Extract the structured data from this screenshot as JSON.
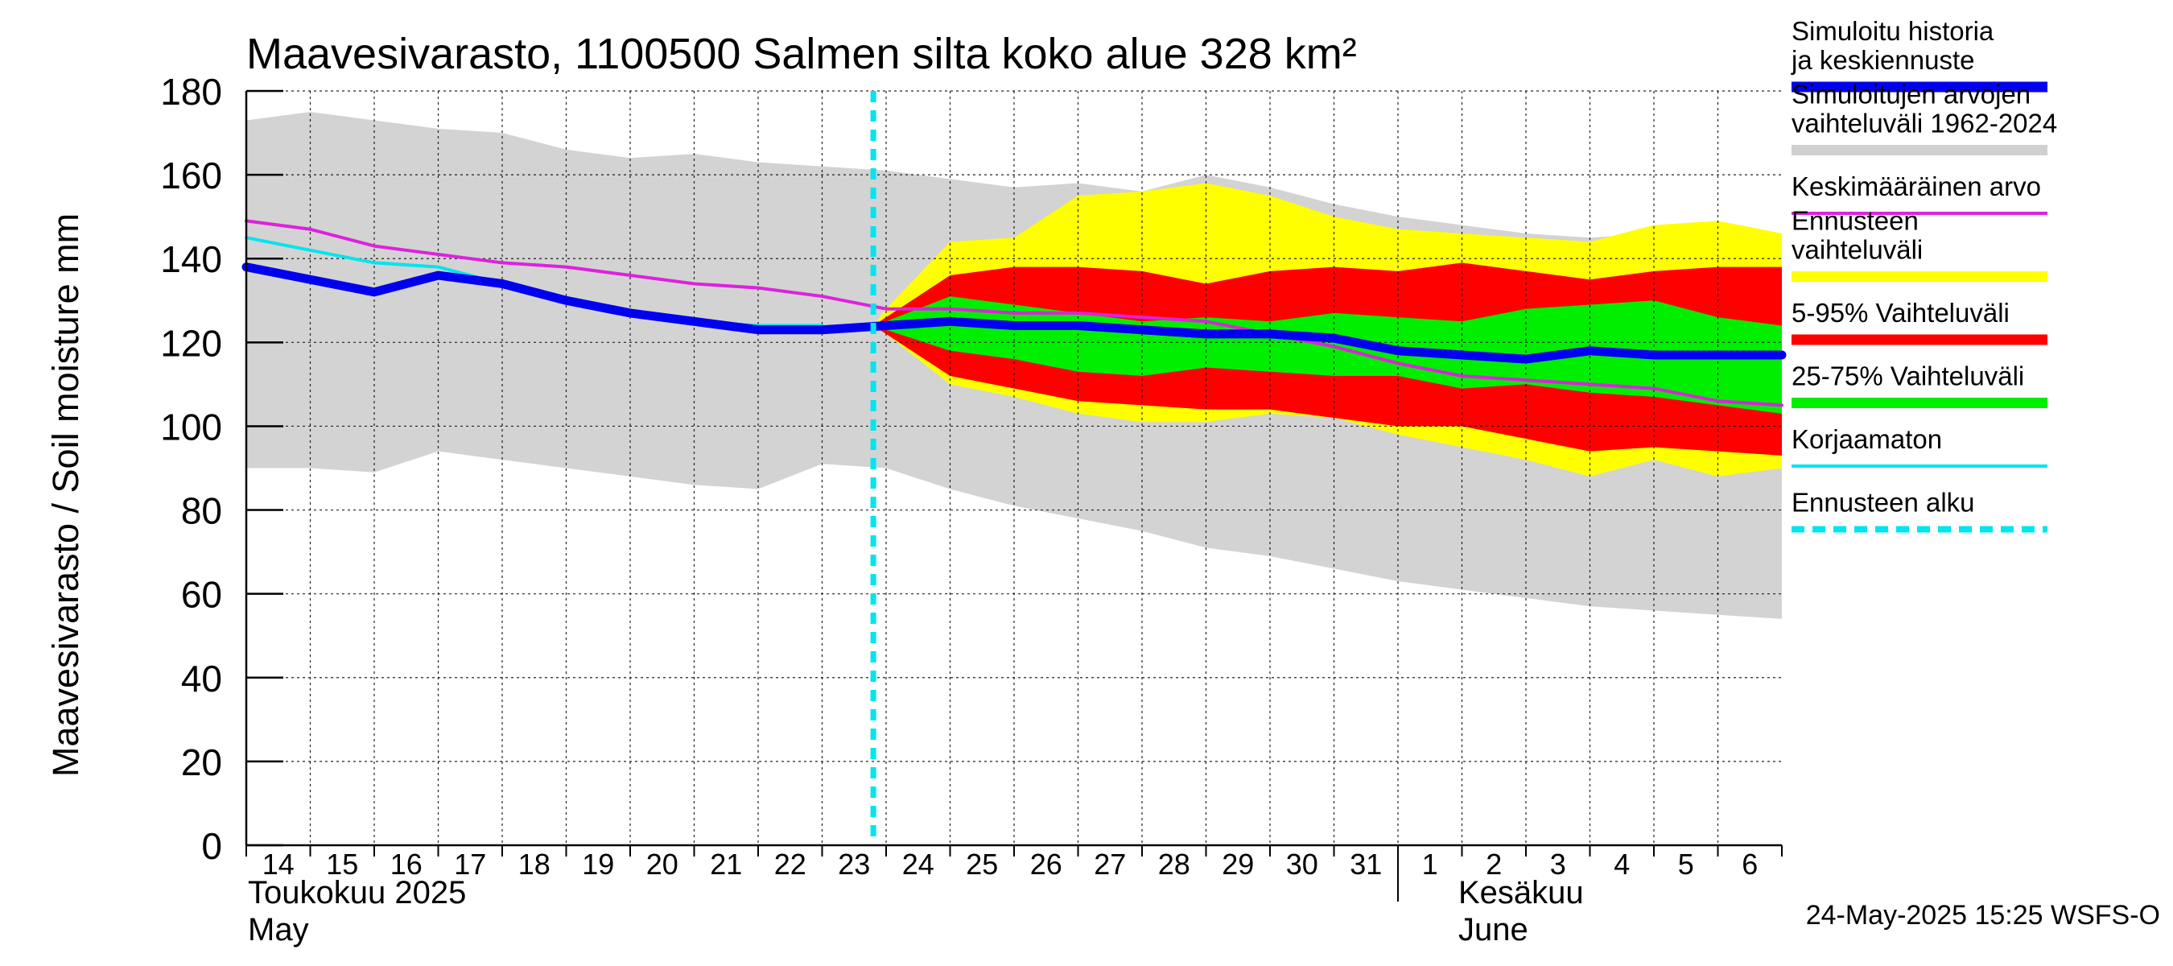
{
  "chart_data": {
    "type": "area",
    "title": "Maavesivarasto, 1100500 Salmen silta koko alue 328 km²",
    "ylabel": "Maavesivarasto / Soil moisture   mm",
    "ylim": [
      0,
      180
    ],
    "yticks": [
      0,
      20,
      40,
      60,
      80,
      100,
      120,
      140,
      160,
      180
    ],
    "grid": true,
    "legend_position": "right",
    "x_day_labels": [
      "14",
      "15",
      "16",
      "17",
      "18",
      "19",
      "20",
      "21",
      "22",
      "23",
      "24",
      "25",
      "26",
      "27",
      "28",
      "29",
      "30",
      "31",
      "1",
      "2",
      "3",
      "4",
      "5",
      "6"
    ],
    "month_labels": [
      {
        "fi": "Toukokuu  2025",
        "en": "May"
      },
      {
        "fi": "Kesäkuu",
        "en": "June"
      }
    ],
    "footer": "24-May-2025 15:25 WSFS-O",
    "forecast_start_day_index": 9.8,
    "series": {
      "sim_range": {
        "name": "Simuloitujen arvojen vaihteluväli 1962-2024",
        "x": [
          0,
          1,
          2,
          3,
          4,
          5,
          6,
          7,
          8,
          9,
          10,
          11,
          12,
          13,
          14,
          15,
          16,
          17,
          18,
          19,
          20,
          21,
          22,
          23,
          24
        ],
        "upper": [
          173,
          175,
          173,
          171,
          170,
          166,
          164,
          165,
          163,
          162,
          161,
          159,
          157,
          158,
          156,
          160,
          157,
          153,
          150,
          148,
          146,
          145,
          146,
          146,
          144
        ],
        "lower": [
          90,
          90,
          89,
          94,
          92,
          90,
          88,
          86,
          85,
          91,
          90,
          85,
          81,
          78,
          75,
          71,
          69,
          66,
          63,
          61,
          59,
          57,
          56,
          55,
          54
        ]
      },
      "forecast_range": {
        "name": "Ennusteen vaihteluväli",
        "x": [
          9.8,
          10,
          11,
          12,
          13,
          14,
          15,
          16,
          17,
          18,
          19,
          20,
          21,
          22,
          23,
          24
        ],
        "upper": [
          124,
          128,
          144,
          145,
          155,
          156,
          158,
          155,
          150,
          147,
          146,
          145,
          144,
          148,
          149,
          146
        ],
        "lower": [
          124,
          122,
          110,
          107,
          103,
          101,
          101,
          103,
          102,
          98,
          95,
          92,
          88,
          92,
          88,
          90
        ]
      },
      "p5_95": {
        "name": "5-95% Vaihteluväli",
        "x": [
          9.8,
          10,
          11,
          12,
          13,
          14,
          15,
          16,
          17,
          18,
          19,
          20,
          21,
          22,
          23,
          24
        ],
        "upper": [
          124,
          126,
          136,
          138,
          138,
          137,
          134,
          137,
          138,
          137,
          139,
          137,
          135,
          137,
          138,
          138
        ],
        "lower": [
          124,
          122,
          112,
          109,
          106,
          105,
          104,
          104,
          102,
          100,
          100,
          97,
          94,
          95,
          94,
          93
        ]
      },
      "p25_75": {
        "name": "25-75% Vaihteluväli",
        "x": [
          9.8,
          10,
          11,
          12,
          13,
          14,
          15,
          16,
          17,
          18,
          19,
          20,
          21,
          22,
          23,
          24
        ],
        "upper": [
          124,
          125,
          131,
          129,
          127,
          125,
          126,
          125,
          127,
          126,
          125,
          128,
          129,
          130,
          126,
          124
        ],
        "lower": [
          124,
          123,
          118,
          116,
          113,
          112,
          114,
          113,
          112,
          112,
          109,
          110,
          108,
          107,
          105,
          103
        ]
      },
      "mean": {
        "name": "Keskimääräinen arvo",
        "x": [
          0,
          1,
          2,
          3,
          4,
          5,
          6,
          7,
          8,
          9,
          10,
          11,
          12,
          13,
          14,
          15,
          16,
          17,
          18,
          19,
          20,
          21,
          22,
          23,
          24
        ],
        "values": [
          149,
          147,
          143,
          141,
          139,
          138,
          136,
          134,
          133,
          131,
          128,
          128,
          127,
          127,
          126,
          125,
          122,
          119,
          115,
          112,
          111,
          110,
          109,
          106,
          105
        ]
      },
      "uncorrected": {
        "name": "Korjaamaton",
        "x": [
          0,
          1,
          2,
          3,
          4,
          5,
          6,
          7,
          8,
          9
        ],
        "values": [
          145,
          142,
          139,
          138,
          134,
          130,
          127,
          125,
          124,
          124
        ]
      },
      "history_median": {
        "name": "Simuloitu historia ja keskiennuste",
        "x": [
          0,
          1,
          2,
          3,
          4,
          5,
          6,
          7,
          8,
          9,
          10,
          11,
          12,
          13,
          14,
          15,
          16,
          17,
          18,
          19,
          20,
          21,
          22,
          23,
          24
        ],
        "values": [
          138,
          135,
          132,
          136,
          134,
          130,
          127,
          125,
          123,
          123,
          124,
          125,
          124,
          124,
          123,
          122,
          122,
          121,
          118,
          117,
          116,
          118,
          117,
          117,
          117
        ]
      }
    },
    "legend": [
      {
        "label": "Simuloitu historia ja keskiennuste",
        "color": "#0000ee",
        "style": "thick"
      },
      {
        "label": "Simuloitujen arvojen vaihteluväli 1962-2024",
        "color": "#d0d0d0",
        "style": "thick"
      },
      {
        "label": "Keskimääräinen arvo",
        "color": "#dd22dd",
        "style": "thin"
      },
      {
        "label": "Ennusteen vaihteluväli",
        "color": "#ffff00",
        "style": "thick"
      },
      {
        "label": "5-95% Vaihteluväli",
        "color": "#ff0000",
        "style": "thick"
      },
      {
        "label": "25-75% Vaihteluväli",
        "color": "#00ee00",
        "style": "thick"
      },
      {
        "label": "Korjaamaton",
        "color": "#00e5ee",
        "style": "thin"
      },
      {
        "label": "Ennusteen alku",
        "color": "#00e5ee",
        "style": "dashed"
      }
    ],
    "colors": {
      "sim_range": "#d3d3d3",
      "forecast_range": "#ffff00",
      "p5_95": "#ff0000",
      "p25_75": "#00ee00",
      "mean": "#dd22dd",
      "uncorrected": "#00e5ee",
      "history_median": "#0000ee",
      "forecast_start": "#00e5ee"
    }
  }
}
